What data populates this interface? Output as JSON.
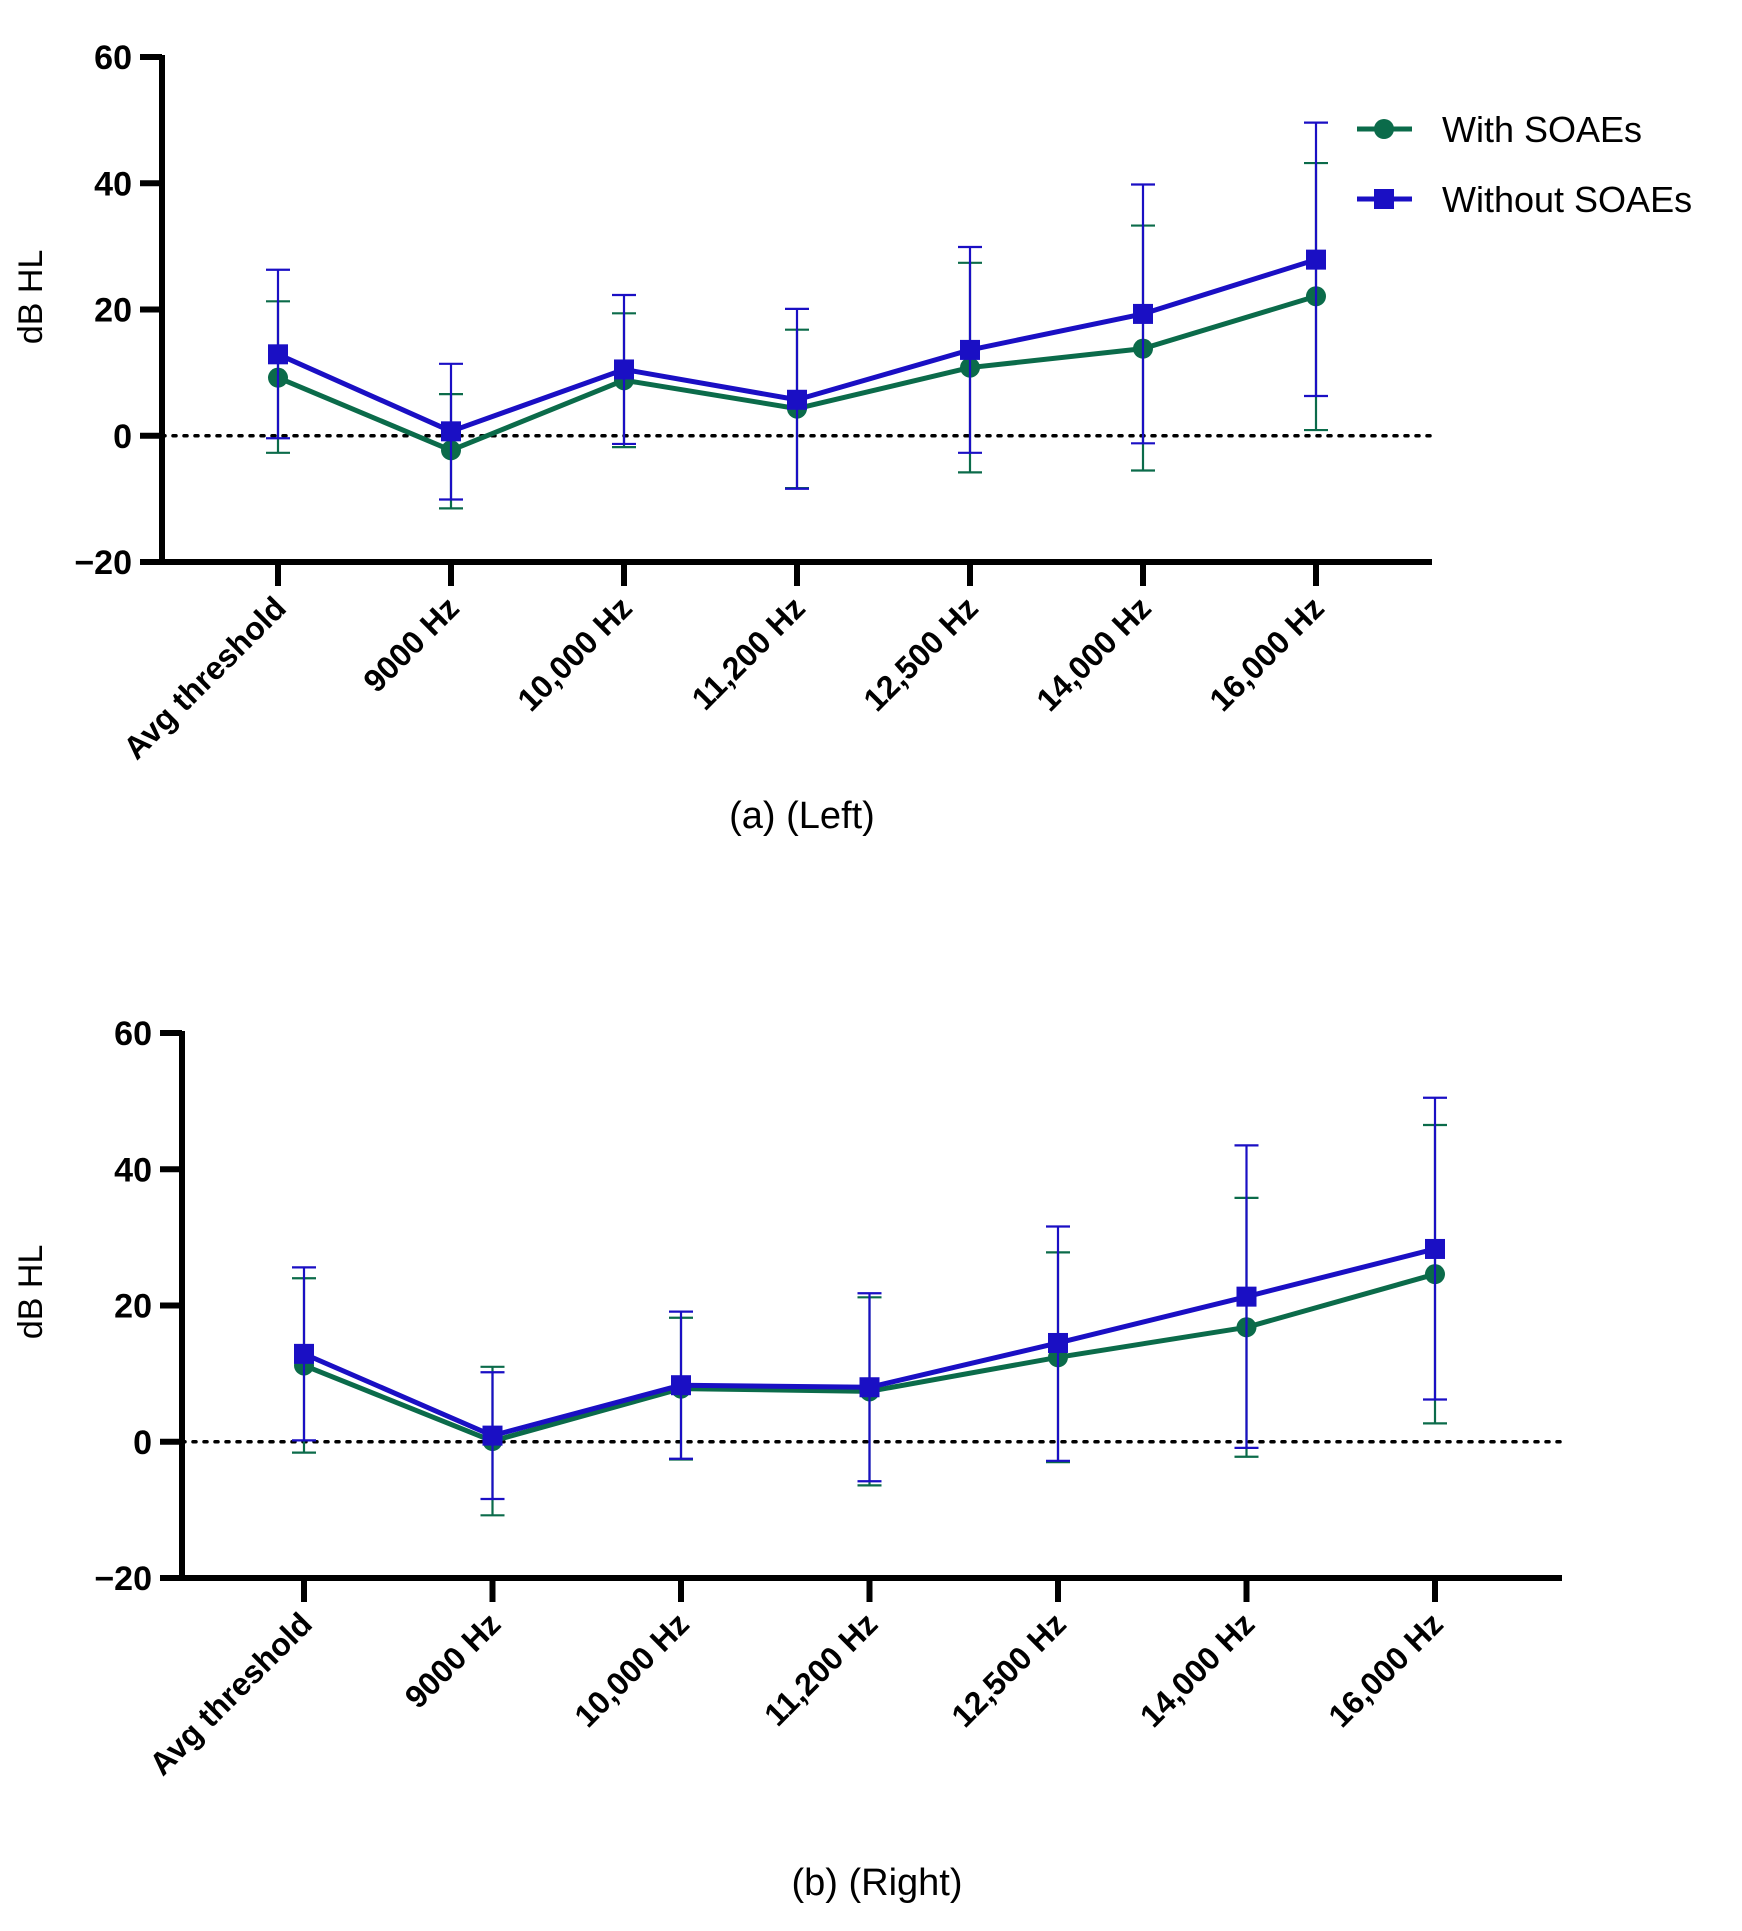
{
  "legend": {
    "position": "top-right",
    "entries": [
      {
        "label": "With SOAEs",
        "color": "#0b6b4a",
        "marker": "circle"
      },
      {
        "label": "Without SOAEs",
        "color": "#1a0fc4",
        "marker": "square"
      }
    ]
  },
  "chart_data": [
    {
      "type": "line",
      "panel": "left",
      "caption": "(a) (Left)",
      "ylabel": "dB HL",
      "xlabel": "",
      "ylim": [
        -20,
        60
      ],
      "yticks": [
        -20,
        0,
        20,
        40,
        60
      ],
      "reference_line": 0,
      "grid": false,
      "categories": [
        "Avg threshold",
        "9000 Hz",
        "10,000 Hz",
        "11,200 Hz",
        "12,500 Hz",
        "14,000 Hz",
        "16,000 Hz"
      ],
      "series": [
        {
          "name": "With SOAEs",
          "color": "#0b6b4a",
          "marker": "circle",
          "values": [
            9.2,
            -2.3,
            8.8,
            4.3,
            10.8,
            13.8,
            22.1
          ],
          "error_low": [
            -2.7,
            -11.5,
            -1.8,
            -8.3,
            -5.8,
            -5.5,
            0.9
          ],
          "error_high": [
            21.3,
            6.6,
            19.4,
            16.8,
            27.4,
            33.3,
            43.2
          ]
        },
        {
          "name": "Without SOAEs",
          "color": "#1a0fc4",
          "marker": "square",
          "values": [
            12.9,
            0.7,
            10.5,
            5.7,
            13.6,
            19.3,
            27.9
          ],
          "error_low": [
            -0.4,
            -10.1,
            -1.3,
            -8.4,
            -2.7,
            -1.2,
            6.3
          ],
          "error_high": [
            26.3,
            11.4,
            22.3,
            20.1,
            29.9,
            39.8,
            49.6
          ]
        }
      ]
    },
    {
      "type": "line",
      "panel": "right",
      "caption": "(b) (Right)",
      "ylabel": "dB HL",
      "xlabel": "",
      "ylim": [
        -20,
        60
      ],
      "yticks": [
        -20,
        0,
        20,
        40,
        60
      ],
      "reference_line": 0,
      "grid": false,
      "categories": [
        "Avg threshold",
        "9000 Hz",
        "10,000 Hz",
        "11,200 Hz",
        "12,500 Hz",
        "14,000 Hz",
        "16,000 Hz"
      ],
      "series": [
        {
          "name": "With SOAEs",
          "color": "#0b6b4a",
          "marker": "circle",
          "values": [
            11.2,
            0.1,
            7.8,
            7.4,
            12.4,
            16.8,
            24.6
          ],
          "error_low": [
            -1.6,
            -10.8,
            -2.6,
            -6.4,
            -3.0,
            -2.2,
            2.7
          ],
          "error_high": [
            24.0,
            11.0,
            18.2,
            21.2,
            27.8,
            35.8,
            46.5
          ]
        },
        {
          "name": "Without SOAEs",
          "color": "#1a0fc4",
          "marker": "square",
          "values": [
            12.9,
            0.9,
            8.3,
            8.0,
            14.5,
            21.3,
            28.3
          ],
          "error_low": [
            0.2,
            -8.4,
            -2.5,
            -5.8,
            -2.8,
            -0.9,
            6.2
          ],
          "error_high": [
            25.6,
            10.2,
            19.1,
            21.8,
            31.6,
            43.5,
            50.5
          ]
        }
      ]
    }
  ]
}
